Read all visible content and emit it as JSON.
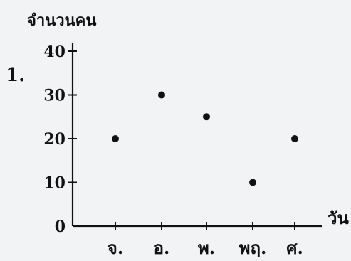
{
  "problem": {
    "number": "1."
  },
  "chart_data": {
    "type": "scatter",
    "ylabel": "จำนวนคน",
    "xlabel": "วัน",
    "categories": [
      "จ.",
      "อ.",
      "พ.",
      "พฤ.",
      "ศ."
    ],
    "values": [
      20,
      30,
      25,
      10,
      20
    ],
    "ylim": [
      0,
      40
    ],
    "yticks": [
      0,
      10,
      20,
      30,
      40
    ],
    "grid": false,
    "colors": {
      "point": "#111111",
      "axis": "#111111"
    }
  }
}
